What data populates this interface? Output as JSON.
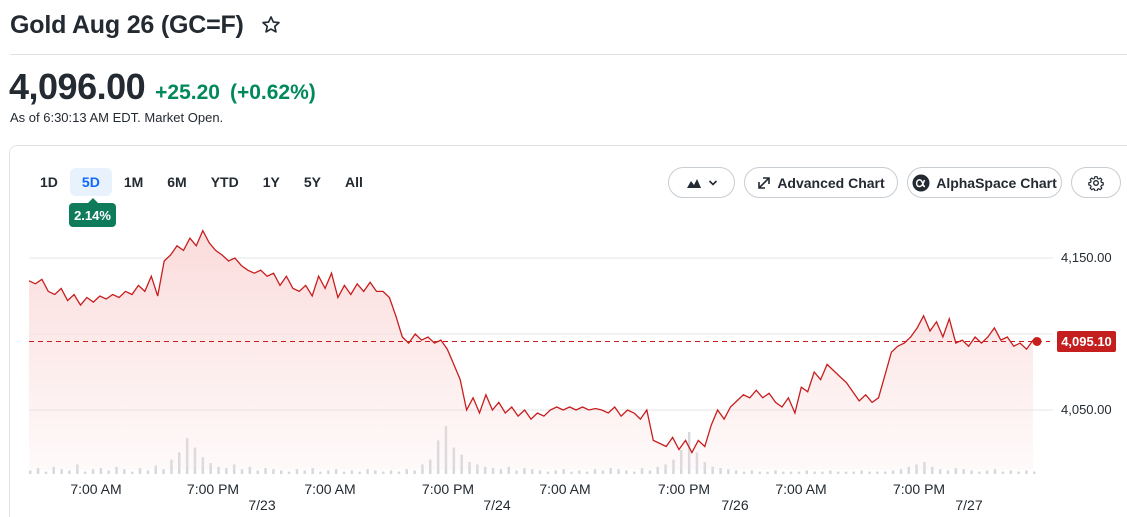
{
  "header": {
    "title": "Gold Aug 26 (GC=F)",
    "icons": {
      "favorite": "star-outline-icon"
    }
  },
  "quote": {
    "price": "4,096.00",
    "change": "+25.20",
    "change_pct": "(+0.62%)",
    "as_of": "As of 6:30:13 AM EDT. Market Open."
  },
  "ranges": {
    "items": [
      "1D",
      "5D",
      "1M",
      "6M",
      "YTD",
      "1Y",
      "5Y",
      "All"
    ],
    "active": "5D",
    "active_change": "2.14%"
  },
  "toolbar": {
    "chart_type_icon": "mountain-chart-icon",
    "advanced_label": "Advanced Chart",
    "alphaspace_label": "AlphaSpace Chart",
    "settings_icon": "gear-icon"
  },
  "colors": {
    "line": "#c81e1e",
    "fill": "#fbdcdc",
    "positive": "#008a5c",
    "tag": "#c41e1e",
    "active_tab": "#0f69ff"
  },
  "chart_data": {
    "type": "area",
    "y_ticks": [
      "4,150.00",
      "4,050.00"
    ],
    "ylim": [
      4010,
      4180
    ],
    "previous_close": 4095.1,
    "last_price_label": "4,095.10",
    "x_tick_labels": [
      "7:00 AM",
      "7:00 PM",
      "7:00 AM",
      "7:00 PM",
      "7:00 AM",
      "7:00 PM",
      "7:00 AM",
      "7:00 PM"
    ],
    "date_labels": [
      "7/23",
      "7/24",
      "7/26",
      "7/27"
    ],
    "series": [
      {
        "values": [
          4135,
          4133,
          4136,
          4128,
          4126,
          4130,
          4122,
          4126,
          4119,
          4124,
          4121,
          4125,
          4123,
          4126,
          4124,
          4128,
          4126,
          4132,
          4128,
          4138,
          4125,
          4148,
          4152,
          4158,
          4155,
          4163,
          4158,
          4168,
          4160,
          4155,
          4152,
          4148,
          4150,
          4145,
          4142,
          4140,
          4142,
          4138,
          4140,
          4132,
          4138,
          4130,
          4128,
          4132,
          4125,
          4138,
          4130,
          4140,
          4124,
          4132,
          4126,
          4133,
          4128,
          4134,
          4128,
          4128,
          4124,
          4112,
          4098,
          4094,
          4100,
          4096,
          4098,
          4094,
          4096,
          4090,
          4080,
          4070,
          4050,
          4058,
          4048,
          4060,
          4050,
          4055,
          4048,
          4052,
          4046,
          4050,
          4044,
          4048,
          4046,
          4050,
          4052,
          4050,
          4052,
          4050,
          4052,
          4050,
          4051,
          4050,
          4048,
          4052,
          4046,
          4050,
          4048,
          4044,
          4050,
          4030,
          4028,
          4026,
          4032,
          4024,
          4030,
          4022,
          4030,
          4026,
          4040,
          4050,
          4044,
          4052,
          4056,
          4060,
          4058,
          4063,
          4058,
          4061,
          4055,
          4052,
          4058,
          4048,
          4065,
          4062,
          4075,
          4070,
          4080,
          4076,
          4072,
          4068,
          4062,
          4056,
          4060,
          4055,
          4058,
          4073,
          4088,
          4092,
          4094,
          4098,
          4104,
          4112,
          4102,
          4108,
          4098,
          4110,
          4094,
          4096,
          4092,
          4098,
          4094,
          4098,
          4104,
          4096,
          4098,
          4092,
          4094,
          4090,
          4096
        ]
      }
    ],
    "volume": [
      3,
      5,
      2,
      6,
      4,
      3,
      8,
      2,
      4,
      5,
      3,
      6,
      4,
      2,
      5,
      3,
      7,
      4,
      12,
      18,
      30,
      22,
      14,
      9,
      6,
      5,
      8,
      4,
      6,
      3,
      5,
      4,
      3,
      2,
      4,
      3,
      5,
      2,
      3,
      4,
      2,
      3,
      2,
      4,
      3,
      2,
      3,
      2,
      4,
      3,
      8,
      12,
      28,
      40,
      22,
      16,
      10,
      8,
      6,
      5,
      4,
      6,
      3,
      5,
      4,
      3,
      2,
      3,
      4,
      2,
      3,
      2,
      4,
      3,
      5,
      4,
      3,
      2,
      5,
      3,
      6,
      8,
      12,
      20,
      35,
      18,
      10,
      6,
      5,
      4,
      3,
      2,
      3,
      2,
      2,
      3,
      2,
      2,
      2,
      3,
      2,
      2,
      3,
      2,
      2,
      2,
      3,
      2,
      2,
      2,
      3,
      4,
      6,
      8,
      10,
      6,
      4,
      3,
      5,
      4,
      3,
      2,
      3,
      4,
      2,
      3,
      2,
      3,
      2
    ]
  }
}
